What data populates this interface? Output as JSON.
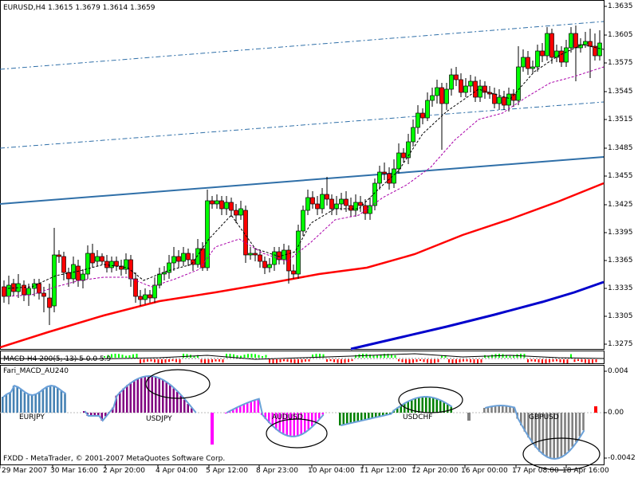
{
  "header": {
    "symbol_info": "EURUSD,H4  1.3615 1.3679 1.3614 1.3659"
  },
  "macd_panel": {
    "label": "MACD H4 200(5, 13) 5 0.0 5.9"
  },
  "fari_panel": {
    "label": "Fari_MACD_AU240",
    "y_labels": [
      "0.004",
      "0.00",
      "-0.0042"
    ]
  },
  "price_axis": {
    "labels": [
      "1.3635",
      "1.3605",
      "1.3575",
      "1.3545",
      "1.3515",
      "1.3485",
      "1.3455",
      "1.3425",
      "1.3395",
      "1.3365",
      "1.3335",
      "1.3305",
      "1.3275"
    ]
  },
  "time_axis": {
    "labels": [
      "29 Mar 2007",
      "30 Mar 16:00",
      "2 Apr 20:00",
      "4 Apr 04:00",
      "5 Apr 12:00",
      "8 Apr 23:00",
      "10 Apr 04:00",
      "11 Apr 12:00",
      "12 Apr 20:00",
      "16 Apr 00:00",
      "17 Apr 08:00",
      "18 Apr 16:00"
    ]
  },
  "pair_labels": [
    "EURJPY",
    "USDJPY",
    "AUDUSD",
    "USDCHF",
    "GBPUSD"
  ],
  "footer": {
    "copyright": "FXDD - MetaTrader, © 2001-2007 MetaQuotes Software Corp."
  },
  "colors": {
    "bull_candle": "#00ff00",
    "bear_candle": "#ff0000",
    "ma_red": "#ff0000",
    "ma_blue": "#0000cc",
    "channel": "#2f6fa8",
    "eurjpy": "#4682b4",
    "usdjpy": "#800080",
    "audusd": "#ff00ff",
    "usdchf": "#008000",
    "gbpusd": "#808080"
  }
}
